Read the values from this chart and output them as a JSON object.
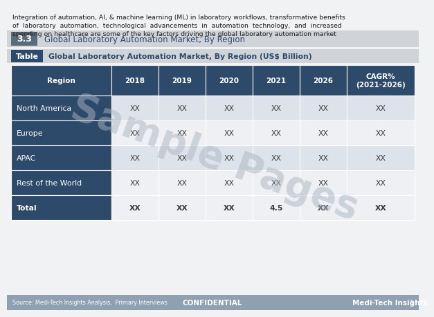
{
  "intro_text_lines": [
    "Integration of automation, AI, & machine learning (ML) in laboratory workflows, transformative benefits",
    "of  laboratory  automation,  technological  advancements  in  automation  technology,  and  increased",
    "spending on healthcare are some of the key factors driving the global laboratory automation market"
  ],
  "section_number": "3.3",
  "section_title": "Global Laboratory Automation Market, By Region",
  "table_label": "Table",
  "table_title": "Global Laboratory Automation Market, By Region (US$ Billion)",
  "watermark": "Sample Pages",
  "header_row": [
    "Region",
    "2018",
    "2019",
    "2020",
    "2021",
    "2026",
    "CAGR%\n(2021-2026)"
  ],
  "rows": [
    [
      "North America",
      "XX",
      "XX",
      "XX",
      "XX",
      "XX",
      "XX"
    ],
    [
      "Europe",
      "XX",
      "XX",
      "XX",
      "XX",
      "XX",
      "XX"
    ],
    [
      "APAC",
      "XX",
      "XX",
      "XX",
      "XX",
      "XX",
      "XX"
    ],
    [
      "Rest of the World",
      "XX",
      "XX",
      "XX",
      "XX",
      "XX",
      "XX"
    ],
    [
      "Total",
      "XX",
      "XX",
      "XX",
      "4.5",
      "XX",
      "XX"
    ]
  ],
  "header_bg": "#2d4a6b",
  "header_fg": "#ffffff",
  "row_bg_even": "#dde3ea",
  "row_bg_odd": "#eef0f3",
  "row_first_col_bg": "#2d4a6b",
  "row_first_col_fg": "#ffffff",
  "section_bar_bg": "#d0d3d8",
  "section_number_bg": "#5a6b7a",
  "section_number_fg": "#ffffff",
  "table_label_bg": "#2d4a6b",
  "table_label_fg": "#ffffff",
  "table_title_bg": "#d0d3d8",
  "table_title_fg": "#2d4a6b",
  "footer_bg": "#8fa0b0",
  "footer_text_color": "#ffffff",
  "source_text": "Source: Medi-Tech Insights Analysis,  Primary Interviews",
  "confidential_text": "CONFIDENTIAL",
  "brand_text": "Medi-Tech Insights",
  "page_number": "1",
  "bg_color": "#f0f2f4",
  "intro_text_color": "#1a1a1a",
  "cell_text_color": "#3a3a3a",
  "total_row_bg": "#eef0f3",
  "section_title_color": "#2d4a6b"
}
